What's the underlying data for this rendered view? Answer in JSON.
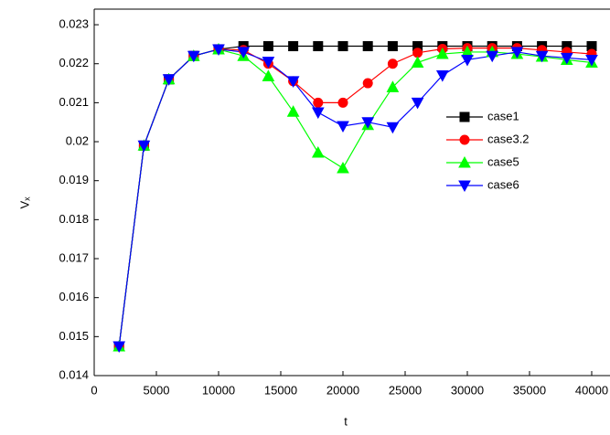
{
  "chart_data": {
    "type": "line",
    "x_label": "t",
    "y_label": "Vₓ",
    "x": [
      2000,
      4000,
      6000,
      8000,
      10000,
      12000,
      14000,
      16000,
      18000,
      20000,
      22000,
      24000,
      26000,
      28000,
      30000,
      32000,
      34000,
      36000,
      38000,
      40000
    ],
    "series": [
      {
        "name": "case1",
        "color": "#000000",
        "marker": "square",
        "values": [
          0.01475,
          0.0199,
          0.0216,
          0.0222,
          0.02237,
          0.02245,
          0.02245,
          0.02245,
          0.02245,
          0.02245,
          0.02245,
          0.02245,
          0.02245,
          0.02245,
          0.02245,
          0.02245,
          0.02245,
          0.02245,
          0.02245,
          0.02245
        ]
      },
      {
        "name": "case3.2",
        "color": "#ff0000",
        "marker": "circle",
        "values": [
          0.01475,
          0.0199,
          0.0216,
          0.0222,
          0.02237,
          0.02235,
          0.022,
          0.02155,
          0.021,
          0.021,
          0.0215,
          0.022,
          0.02228,
          0.02238,
          0.0224,
          0.0224,
          0.0224,
          0.02235,
          0.0223,
          0.02225
        ]
      },
      {
        "name": "case5",
        "color": "#00ff00",
        "marker": "triangle-up",
        "values": [
          0.01475,
          0.0199,
          0.0216,
          0.0222,
          0.02237,
          0.0222,
          0.02168,
          0.02077,
          0.01972,
          0.01932,
          0.02043,
          0.0214,
          0.02203,
          0.02225,
          0.0223,
          0.0223,
          0.02225,
          0.02218,
          0.0221,
          0.02203
        ]
      },
      {
        "name": "case6",
        "color": "#0000ff",
        "marker": "triangle-down",
        "values": [
          0.01475,
          0.0199,
          0.0216,
          0.0222,
          0.02237,
          0.0223,
          0.02205,
          0.02155,
          0.02075,
          0.0204,
          0.0205,
          0.02037,
          0.021,
          0.0217,
          0.0221,
          0.0222,
          0.0223,
          0.0222,
          0.02215,
          0.0221
        ]
      }
    ],
    "xlim": [
      0,
      40000
    ],
    "xticks": [
      0,
      5000,
      10000,
      15000,
      20000,
      25000,
      30000,
      35000,
      40000
    ],
    "ylim": [
      0.014,
      0.0234
    ],
    "yticks": [
      0.014,
      0.015,
      0.016,
      0.017,
      0.018,
      0.019,
      0.02,
      0.021,
      0.022,
      0.023
    ],
    "legend": "center right",
    "grid": false
  }
}
